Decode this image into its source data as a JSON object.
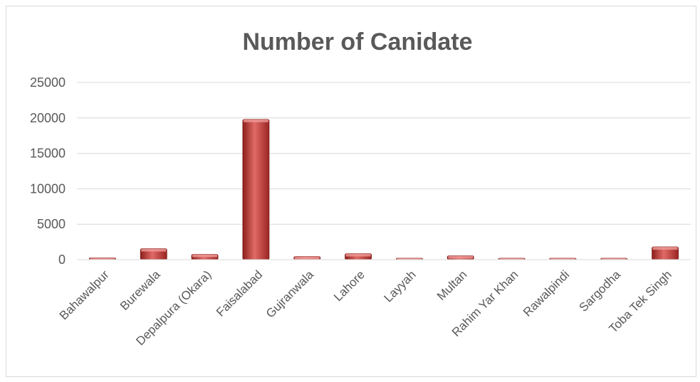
{
  "chart_data": {
    "type": "bar",
    "title": "Number of Canidate",
    "xlabel": "",
    "ylabel": "",
    "categories": [
      "Bahawalpur",
      "Burewala",
      "Depalpura (Okara)",
      "Faisalabad",
      "Gujranwala",
      "Lahore",
      "Layyah",
      "Multan",
      "Rahim Yar Khan",
      "Rawalpindi",
      "Sargodha",
      "Toba Tek Singh"
    ],
    "values": [
      250,
      1550,
      750,
      19800,
      450,
      850,
      150,
      550,
      100,
      80,
      150,
      1800
    ],
    "yticks": [
      "0",
      "5000",
      "10000",
      "15000",
      "20000",
      "25000"
    ],
    "ylim": [
      0,
      25000
    ],
    "grid": true,
    "legend": "none",
    "bar_color": "#c0504d"
  }
}
